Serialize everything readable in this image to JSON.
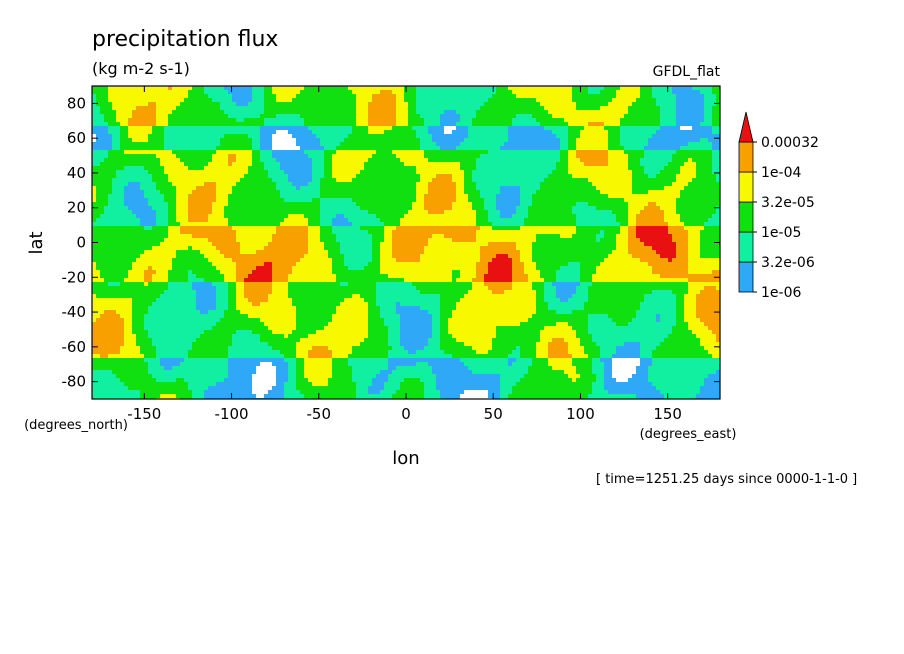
{
  "chart_data": {
    "type": "heatmap",
    "title": "precipitation flux",
    "subtitle": "(kg m-2 s-1)",
    "source_label": "GFDL_flat",
    "xlabel": "lon",
    "ylabel": "lat",
    "x_units": "(degrees_east)",
    "y_units": "(degrees_north)",
    "xlim": [
      -180,
      180
    ],
    "ylim": [
      -90,
      90
    ],
    "x_ticks": [
      -150,
      -100,
      -50,
      0,
      50,
      100,
      150
    ],
    "y_ticks": [
      -80,
      -60,
      -40,
      -20,
      0,
      20,
      40,
      60,
      80
    ],
    "x_tick_labels": [
      "-150",
      "-100",
      "-50",
      "0",
      "50",
      "100",
      "150"
    ],
    "y_tick_labels": [
      "-80",
      "-60",
      "-40",
      "-20",
      "0",
      "20",
      "40",
      "60",
      "80"
    ],
    "grid": false,
    "colorbar": {
      "placement": "right",
      "levels": [
        1e-06,
        3.2e-06,
        1e-05,
        3.2e-05,
        0.0001,
        0.00032
      ],
      "level_labels": [
        "1e-06",
        "3.2e-06",
        "1e-05",
        "3.2e-05",
        "1e-04",
        "0.00032"
      ],
      "colors": [
        "#ffffff",
        "#30a8f8",
        "#10f0a0",
        "#10e010",
        "#f8f800",
        "#f8a000",
        "#e81010"
      ],
      "extend": "max"
    },
    "time_note": "[ time=1251.25 days since 0000-1-1-0 ]",
    "field_band_means": {
      "lat": [
        85,
        75,
        60,
        45,
        30,
        15,
        5,
        -5,
        -15,
        -30,
        -45,
        -60,
        -75,
        -85
      ],
      "typical_class": [
        3,
        3,
        2,
        3,
        3,
        3,
        4,
        4,
        4,
        3,
        3,
        3,
        2,
        2
      ]
    }
  }
}
